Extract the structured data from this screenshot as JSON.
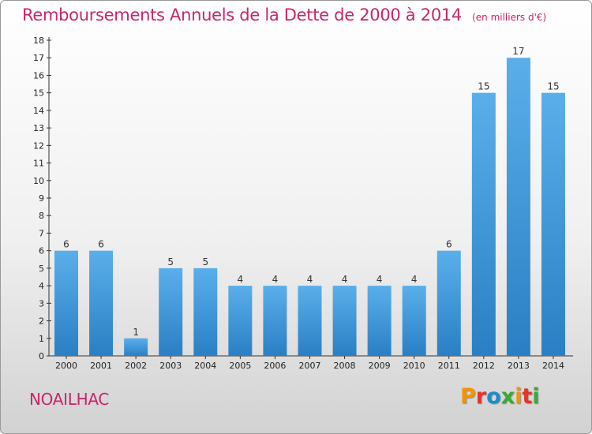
{
  "header": {
    "title": "Remboursements Annuels de la Dette de 2000 à 2014",
    "subtitle": "(en milliers d'€)"
  },
  "footer": {
    "commune": "NOAILHAC",
    "logo_text": "Proxiti",
    "logo_colors": [
      "#f29400",
      "#e5332a",
      "#1d8ccb",
      "#3aaa35",
      "#f29400",
      "#e5332a",
      "#3aaa35"
    ]
  },
  "chart_data": {
    "type": "bar",
    "title": "Remboursements Annuels de la Dette de 2000 à 2014",
    "subtitle": "(en milliers d'€)",
    "categories": [
      "2000",
      "2001",
      "2002",
      "2003",
      "2004",
      "2005",
      "2006",
      "2007",
      "2008",
      "2009",
      "2010",
      "2011",
      "2012",
      "2013",
      "2014"
    ],
    "values": [
      6,
      6,
      1,
      5,
      5,
      4,
      4,
      4,
      4,
      4,
      4,
      6,
      15,
      17,
      15
    ],
    "data_labels": [
      "6",
      "6",
      "1",
      "5",
      "5",
      "4",
      "4",
      "4",
      "4",
      "4",
      "4",
      "6",
      "15",
      "17",
      "15"
    ],
    "yticks": [
      0,
      1,
      2,
      3,
      4,
      5,
      6,
      7,
      8,
      9,
      10,
      11,
      12,
      13,
      14,
      15,
      16,
      17,
      18
    ],
    "ylim": [
      0,
      18
    ],
    "xlabel": "",
    "ylabel": "",
    "grid": false,
    "bar_color": "#3a94d6"
  }
}
